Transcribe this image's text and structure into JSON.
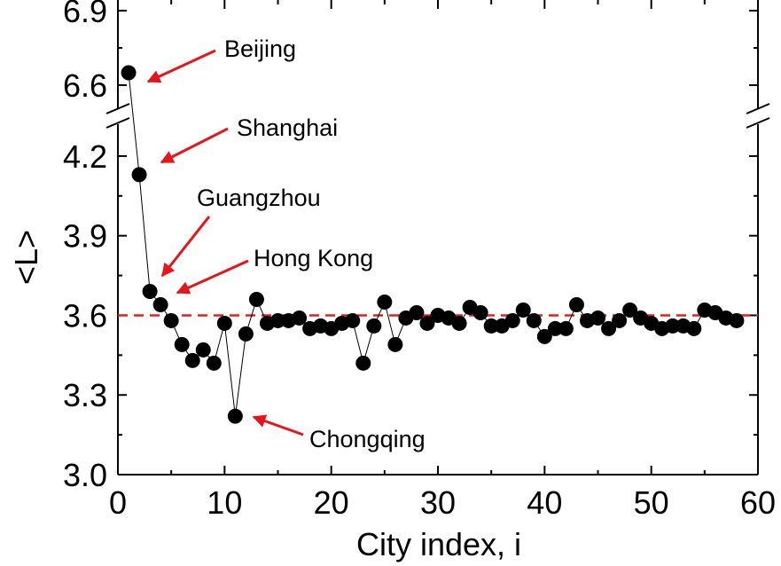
{
  "chart_data": {
    "type": "scatter",
    "xlabel": "City index, i",
    "ylabel": "<L>",
    "xlim": [
      0,
      60
    ],
    "x_ticks": [
      0,
      10,
      20,
      30,
      40,
      50,
      60
    ],
    "x_tick_labels": [
      "0",
      "10",
      "20",
      "30",
      "40",
      "50",
      "60"
    ],
    "y_ticks": [
      3.0,
      3.3,
      3.6,
      3.9,
      4.2,
      6.6,
      6.9
    ],
    "y_tick_labels": [
      "3.0",
      "3.3",
      "3.6",
      "3.9",
      "4.2",
      "6.6",
      "6.9"
    ],
    "y_axis_break": [
      4.3,
      6.5
    ],
    "y_segments": [
      {
        "range": [
          3.0,
          4.3
        ]
      },
      {
        "range": [
          6.5,
          6.9
        ]
      }
    ],
    "reference_line": {
      "y": 3.6,
      "style": "dashed",
      "color": "#e02020"
    },
    "series": [
      {
        "marker_color": "#000000",
        "line_color": "#000000",
        "x": [
          1,
          2,
          3,
          4,
          5,
          6,
          7,
          8,
          9,
          10,
          11,
          12,
          13,
          14,
          15,
          16,
          17,
          18,
          19,
          20,
          21,
          22,
          23,
          24,
          25,
          26,
          27,
          28,
          29,
          30,
          31,
          32,
          33,
          34,
          35,
          36,
          37,
          38,
          39,
          40,
          41,
          42,
          43,
          44,
          45,
          46,
          47,
          48,
          49,
          50,
          51,
          52,
          53,
          54,
          55,
          56,
          57,
          58
        ],
        "y": [
          6.65,
          4.13,
          3.69,
          3.64,
          3.58,
          3.49,
          3.43,
          3.47,
          3.42,
          3.57,
          3.22,
          3.53,
          3.66,
          3.57,
          3.58,
          3.58,
          3.59,
          3.55,
          3.56,
          3.55,
          3.57,
          3.58,
          3.42,
          3.56,
          3.65,
          3.49,
          3.59,
          3.61,
          3.57,
          3.6,
          3.59,
          3.57,
          3.63,
          3.61,
          3.56,
          3.56,
          3.58,
          3.62,
          3.58,
          3.52,
          3.55,
          3.55,
          3.64,
          3.58,
          3.59,
          3.55,
          3.58,
          3.62,
          3.59,
          3.57,
          3.55,
          3.56,
          3.56,
          3.55,
          3.62,
          3.61,
          3.59,
          3.58
        ]
      }
    ],
    "annotations": [
      {
        "text": "Beijing",
        "x": 1,
        "y": 6.65,
        "arrow_color": "#e8141c"
      },
      {
        "text": "Shanghai",
        "x": 2,
        "y": 4.13,
        "arrow_color": "#e8141c"
      },
      {
        "text": "Guangzhou",
        "x": 3,
        "y": 3.69,
        "arrow_color": "#e8141c"
      },
      {
        "text": "Hong Kong",
        "x": 4,
        "y": 3.64,
        "arrow_color": "#e8141c"
      },
      {
        "text": "Chongqing",
        "x": 11,
        "y": 3.22,
        "arrow_color": "#e8141c"
      }
    ]
  }
}
